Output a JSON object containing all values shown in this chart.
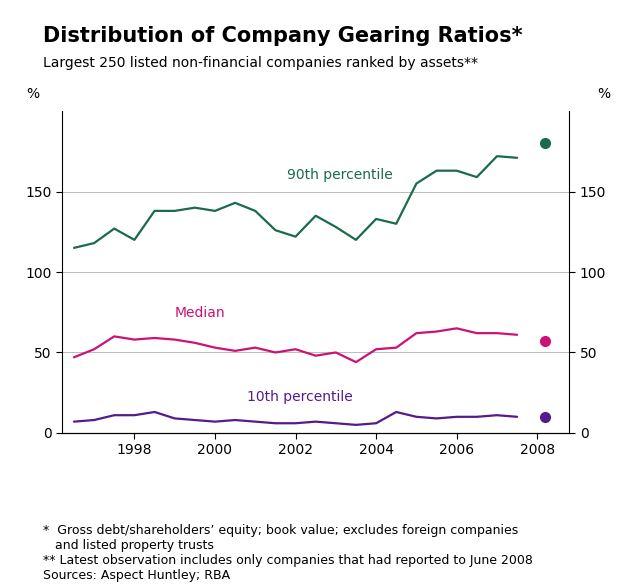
{
  "title": "Distribution of Company Gearing Ratios*",
  "subtitle": "Largest 250 listed non-financial companies ranked by assets**",
  "ylabel_left": "%",
  "ylabel_right": "%",
  "footnote1": "*  Gross debt/shareholders’ equity; book value; excludes foreign companies\n   and listed property trusts",
  "footnote2": "** Latest observation includes only companies that had reported to June 2008",
  "footnote3": "Sources: Aspect Huntley; RBA",
  "ylim": [
    0,
    200
  ],
  "yticks": [
    0,
    50,
    100,
    150
  ],
  "background_color": "#ffffff",
  "years_main": [
    1996.5,
    1997,
    1997.5,
    1998,
    1998.5,
    1999,
    1999.5,
    2000,
    2000.5,
    2001,
    2001.5,
    2002,
    2002.5,
    2003,
    2003.5,
    2004,
    2004.5,
    2005,
    2005.5,
    2006,
    2006.5,
    2007,
    2007.5
  ],
  "year_dot": 2008.2,
  "p90": [
    115,
    118,
    127,
    120,
    138,
    138,
    140,
    138,
    143,
    138,
    126,
    122,
    135,
    128,
    120,
    133,
    130,
    155,
    163,
    163,
    159,
    172,
    171
  ],
  "p90_dot": 180,
  "median": [
    47,
    52,
    60,
    58,
    59,
    58,
    56,
    53,
    51,
    53,
    50,
    52,
    48,
    50,
    44,
    52,
    53,
    62,
    63,
    65,
    62,
    62,
    61
  ],
  "median_dot": 57,
  "p10": [
    7,
    8,
    11,
    11,
    13,
    9,
    8,
    7,
    8,
    7,
    6,
    6,
    7,
    6,
    5,
    6,
    13,
    10,
    9,
    10,
    10,
    11,
    10
  ],
  "p10_dot": 10,
  "color_p90": "#1a6b4a",
  "color_median": "#cc1177",
  "color_p10": "#551a8b",
  "label_p90": "90th percentile",
  "label_median": "Median",
  "label_p10": "10th percentile",
  "title_fontsize": 15,
  "subtitle_fontsize": 10,
  "tick_fontsize": 10,
  "label_fontsize": 10,
  "footnote_fontsize": 9,
  "xlim": [
    1996.2,
    2008.8
  ],
  "xticks": [
    1998,
    2000,
    2002,
    2004,
    2006,
    2008
  ]
}
